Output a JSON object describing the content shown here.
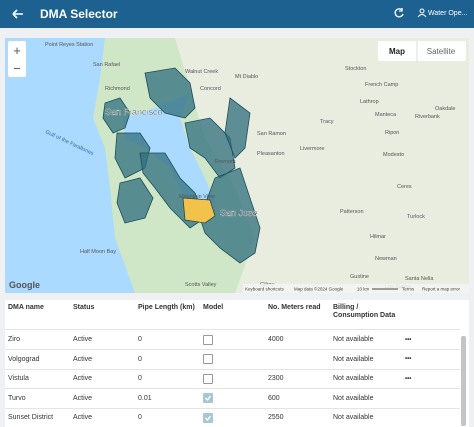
{
  "header": {
    "title": "DMA Selector",
    "user": "Water Ope..."
  },
  "map": {
    "type_buttons": [
      "Map",
      "Satellite"
    ],
    "zoom": [
      "+",
      "−"
    ],
    "labels": [
      "Point Reyes Station",
      "San Rafael",
      "Walnut Creek",
      "Mt Diablo",
      "Stockton",
      "French Camp",
      "Lathrop",
      "Manteca",
      "Tracy",
      "San Francisco",
      "San Ramon",
      "Pleasanton",
      "Livermore",
      "Ripon",
      "Modesto",
      "Riverbank",
      "Oakdale",
      "Fremont",
      "Ceres",
      "Turlock",
      "Gulf of the Farallones",
      "Mountain View",
      "San Jose",
      "Half Moon Bay",
      "Patterson",
      "Hilmar",
      "Newman",
      "Gustine",
      "Los Banos",
      "Santa Nella",
      "Gilroy",
      "Scotts Valley",
      "Concord",
      "Richmond"
    ],
    "attribution": {
      "logo": "Google",
      "shortcuts": "Keyboard shortcuts",
      "data": "Map data ©2024 Google",
      "scale": "10 km",
      "terms": "Terms",
      "report": "Report a map error"
    }
  },
  "table": {
    "columns": [
      "DMA name",
      "Status",
      "Pipe Length (km)",
      "Model",
      "No. Meters read",
      "Billing / Consumption Data"
    ],
    "rows": [
      {
        "name": "Ziro",
        "status": "Active",
        "pipe": "0",
        "model": false,
        "meters": "4000",
        "billing": "Not available",
        "menu": "•••"
      },
      {
        "name": "Volgograd",
        "status": "Active",
        "pipe": "0",
        "model": false,
        "meters": null,
        "billing": "Not available",
        "menu": "•••"
      },
      {
        "name": "Vistula",
        "status": "Active",
        "pipe": "0",
        "model": false,
        "meters": "2300",
        "billing": "Not available",
        "menu": "•••"
      },
      {
        "name": "Turvo",
        "status": "Active",
        "pipe": "0.01",
        "model": true,
        "meters": "600",
        "billing": "Not available",
        "menu": null
      },
      {
        "name": "Sunset District",
        "status": "Active",
        "pipe": "0",
        "model": true,
        "meters": "2550",
        "billing": "Not available",
        "menu": null
      }
    ]
  }
}
